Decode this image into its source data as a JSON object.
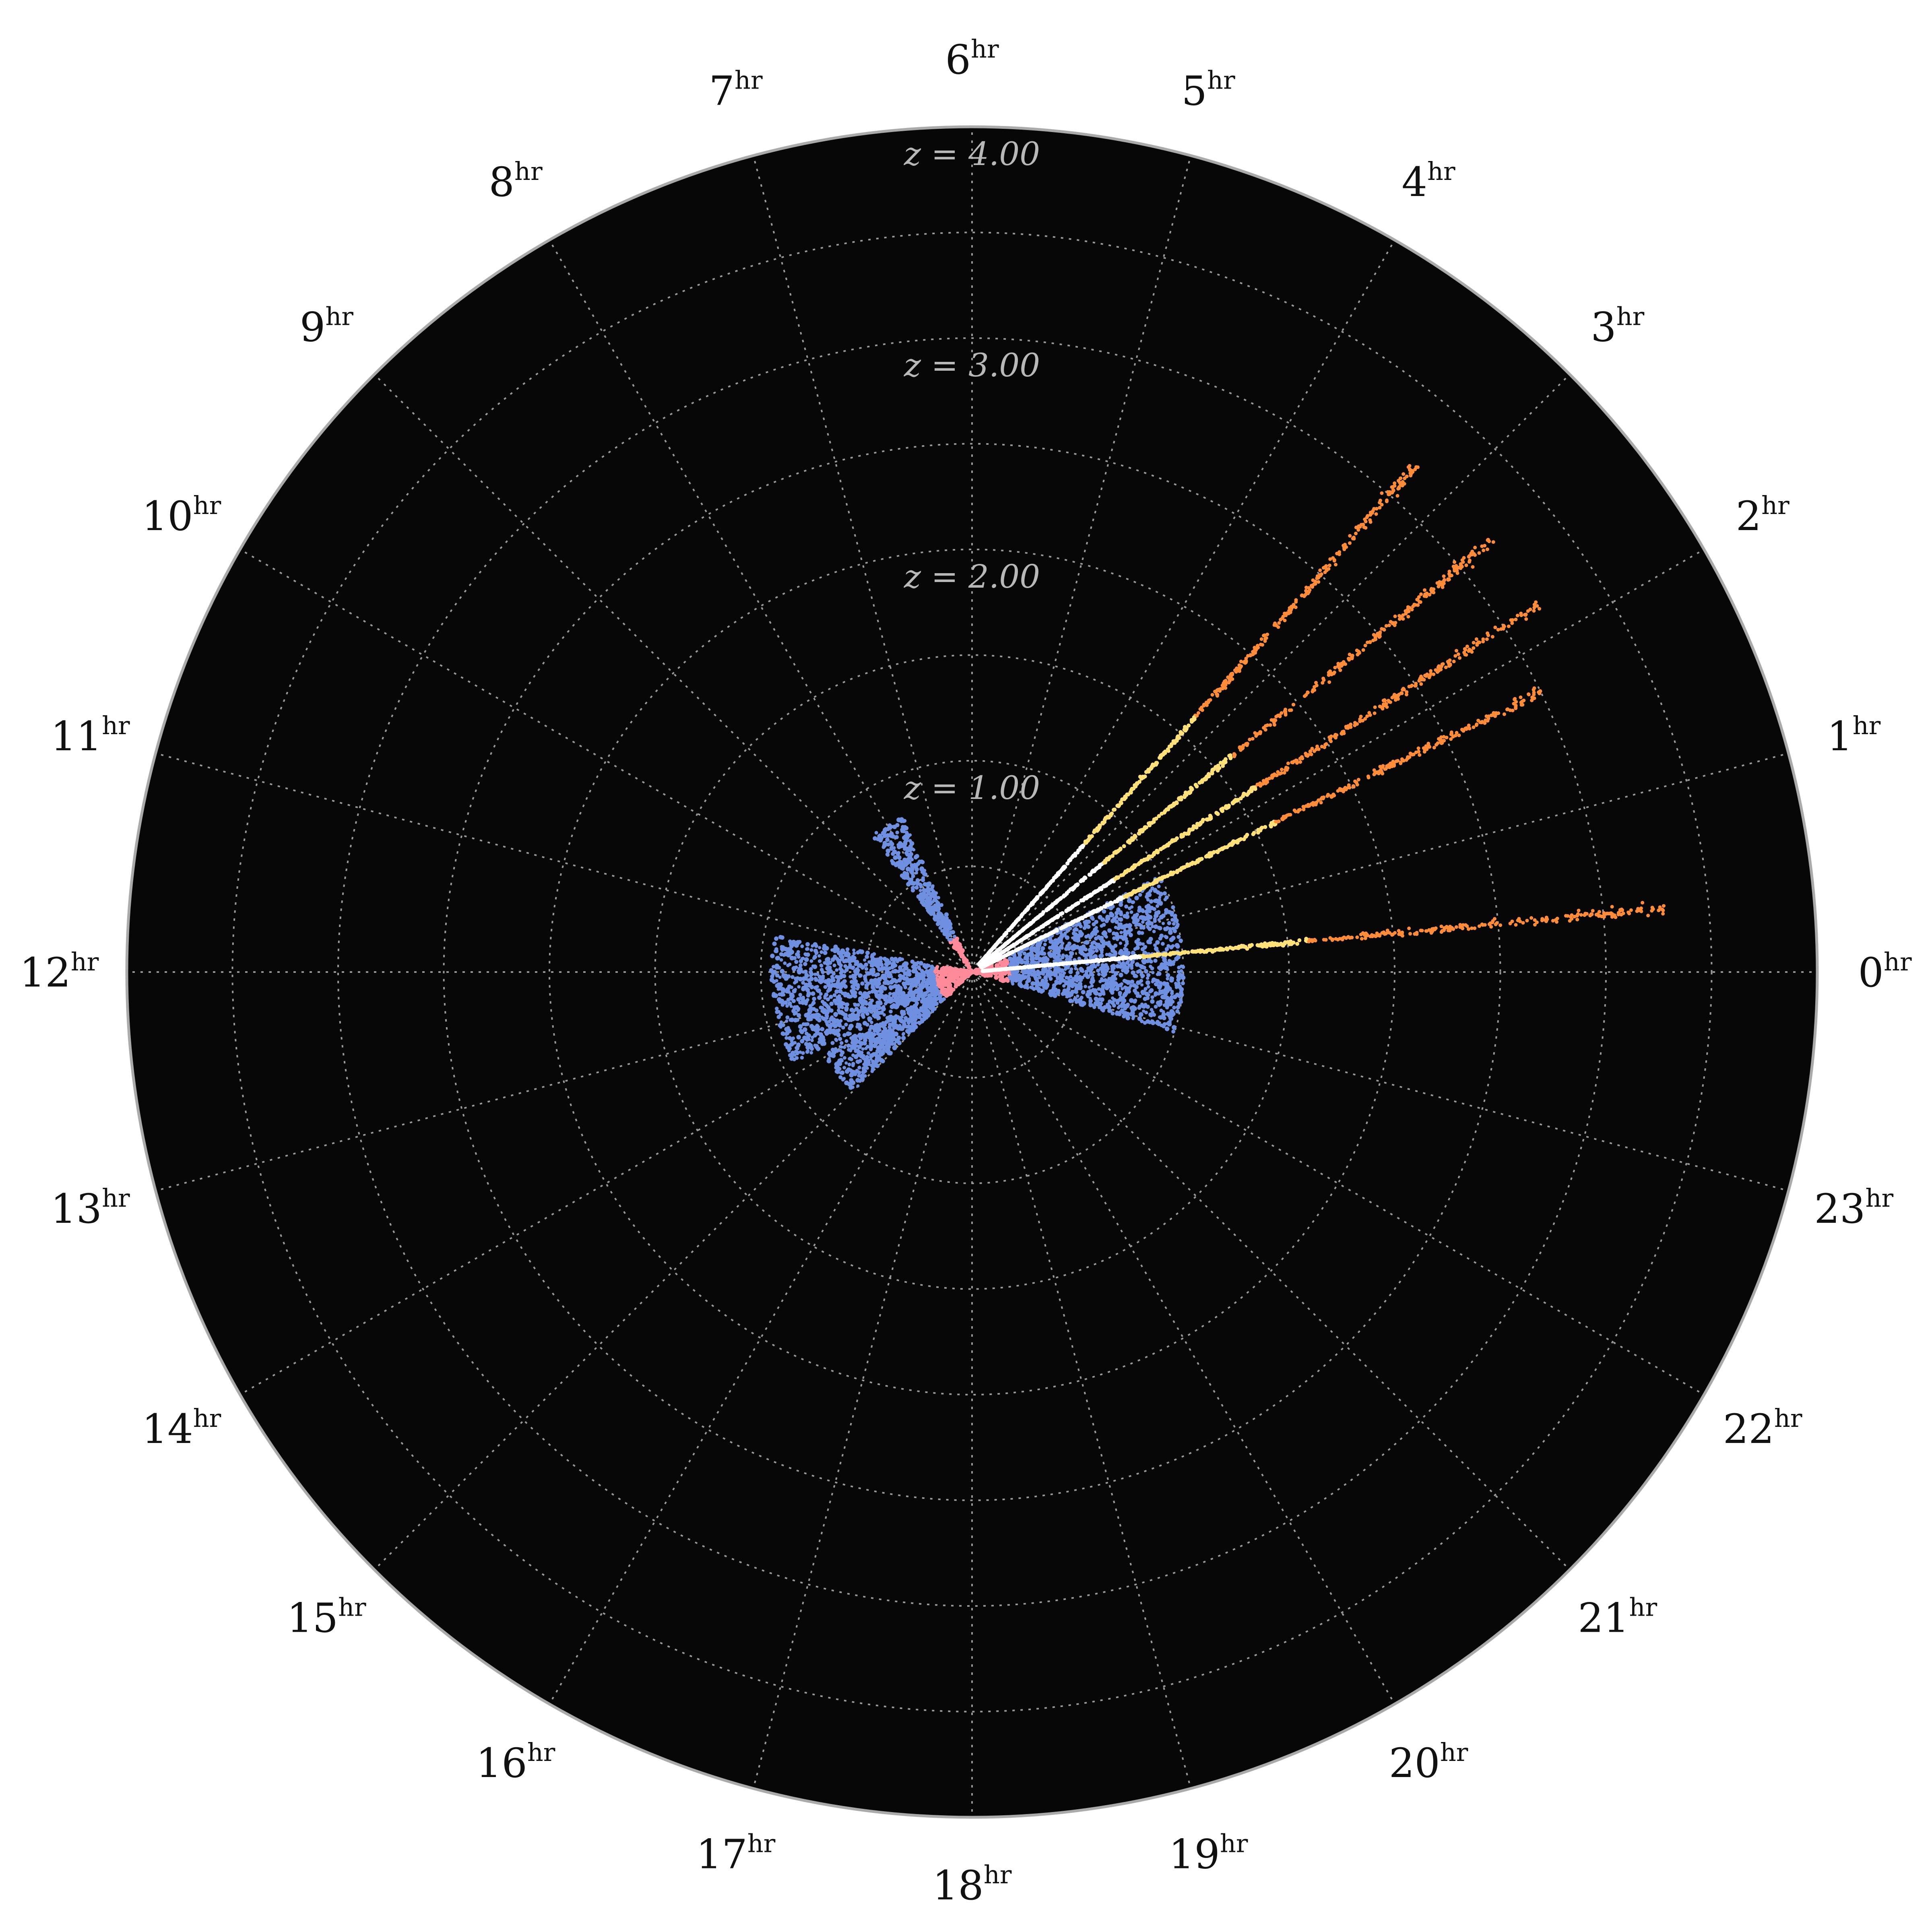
{
  "chart_data": {
    "type": "scatter",
    "projection": "polar",
    "title": "",
    "angle_axis": {
      "labels": [
        "0",
        "1",
        "2",
        "3",
        "4",
        "5",
        "6",
        "7",
        "8",
        "9",
        "10",
        "11",
        "12",
        "13",
        "14",
        "15",
        "16",
        "17",
        "18",
        "19",
        "20",
        "21",
        "22",
        "23"
      ],
      "suffix": "hr",
      "range_hours": [
        0,
        24
      ],
      "direction": "counterclockwise",
      "zero_position": "right"
    },
    "radial_axis": {
      "labels": [
        "z = 1.00",
        "z = 2.00",
        "z = 3.00",
        "z = 4.00"
      ],
      "ticks": [
        1.0,
        2.0,
        3.0,
        4.0
      ],
      "range": [
        0,
        4.0
      ]
    },
    "grid": true,
    "colors": {
      "background": "#070707",
      "rim": "#aaaaaa",
      "grid": "#9a9a9a",
      "near": "#ff8a9a",
      "mid": "#6f8fe0",
      "fan_core": "#ffffff",
      "fan_mid": "#ffe07a",
      "fan_far": "#ff8c3a"
    },
    "series": [
      {
        "kind": "fan",
        "wedges": [
          {
            "ra_hr": 0.35,
            "z_max": 3.3
          },
          {
            "ra_hr": 1.75,
            "z_max": 3.0
          },
          {
            "ra_hr": 2.2,
            "z_max": 3.2
          },
          {
            "ra_hr": 2.65,
            "z_max": 3.2
          },
          {
            "ra_hr": 3.25,
            "z_max": 3.2
          }
        ]
      },
      {
        "kind": "cloud",
        "wedges": [
          {
            "ra_min_hr": 22.9,
            "ra_max_hr": 25.8,
            "z_max": 1.0
          },
          {
            "ra_min_hr": 7.6,
            "ra_max_hr": 8.4,
            "z_max": 0.8
          },
          {
            "ra_min_hr": 11.3,
            "ra_max_hr": 13.8,
            "z_max": 0.95
          },
          {
            "ra_min_hr": 13.9,
            "ra_max_hr": 15.0,
            "z_max": 0.8
          }
        ]
      }
    ]
  }
}
